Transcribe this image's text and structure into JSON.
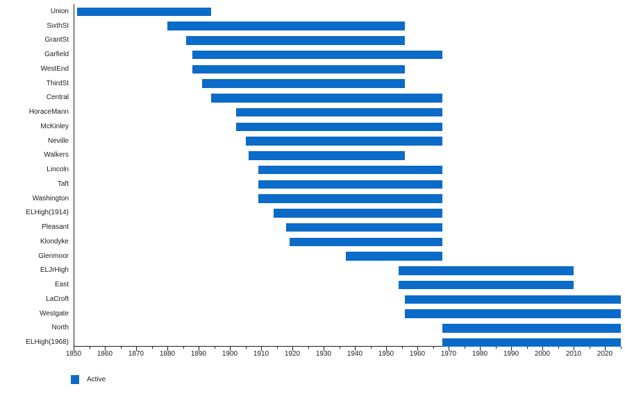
{
  "chart_data": {
    "type": "bar",
    "variant": "horizontal-range-gantt",
    "title": "",
    "xlabel": "",
    "ylabel": "",
    "xlim": [
      1850,
      2025
    ],
    "x_major_ticks": [
      "1850",
      "1860",
      "1870",
      "1880",
      "1890",
      "1900",
      "1910",
      "1920",
      "1930",
      "1940",
      "1950",
      "1960",
      "1970",
      "1980",
      "1990",
      "2000",
      "2010",
      "2020"
    ],
    "x_minor_step": 5,
    "grid": "off",
    "bar_color": "#0b6bc9",
    "legend": {
      "label": "Active",
      "position": "bottom-left"
    },
    "bars": [
      {
        "label": "Union",
        "start": 1851,
        "end": 1894
      },
      {
        "label": "SixthSt",
        "start": 1880,
        "end": 1956
      },
      {
        "label": "GrantSt",
        "start": 1886,
        "end": 1956
      },
      {
        "label": "Garfield",
        "start": 1888,
        "end": 1968
      },
      {
        "label": "WestEnd",
        "start": 1888,
        "end": 1956
      },
      {
        "label": "ThirdSt",
        "start": 1891,
        "end": 1956
      },
      {
        "label": "Central",
        "start": 1894,
        "end": 1968
      },
      {
        "label": "HoraceMann",
        "start": 1902,
        "end": 1968
      },
      {
        "label": "McKinley",
        "start": 1902,
        "end": 1968
      },
      {
        "label": "Neville",
        "start": 1905,
        "end": 1968
      },
      {
        "label": "Walkers",
        "start": 1906,
        "end": 1956
      },
      {
        "label": "Lincoln",
        "start": 1909,
        "end": 1968
      },
      {
        "label": "Taft",
        "start": 1909,
        "end": 1968
      },
      {
        "label": "Washington",
        "start": 1909,
        "end": 1968
      },
      {
        "label": "ELHigh(1914)",
        "start": 1914,
        "end": 1968
      },
      {
        "label": "Pleasant",
        "start": 1918,
        "end": 1968
      },
      {
        "label": "Klondyke",
        "start": 1919,
        "end": 1968
      },
      {
        "label": "Glenmoor",
        "start": 1937,
        "end": 1968
      },
      {
        "label": "ELJrHigh",
        "start": 1954,
        "end": 2010
      },
      {
        "label": "East",
        "start": 1954,
        "end": 2010
      },
      {
        "label": "LaCroft",
        "start": 1956,
        "end": 2025
      },
      {
        "label": "Westgate",
        "start": 1956,
        "end": 2025
      },
      {
        "label": "North",
        "start": 1968,
        "end": 2025
      },
      {
        "label": "ELHigh(1968)",
        "start": 1968,
        "end": 2025
      }
    ]
  },
  "colors": {
    "background": "#ffffff",
    "axis": "#1a1a1a",
    "text": "#1a1a1a",
    "bar": "#0b6bc9"
  }
}
